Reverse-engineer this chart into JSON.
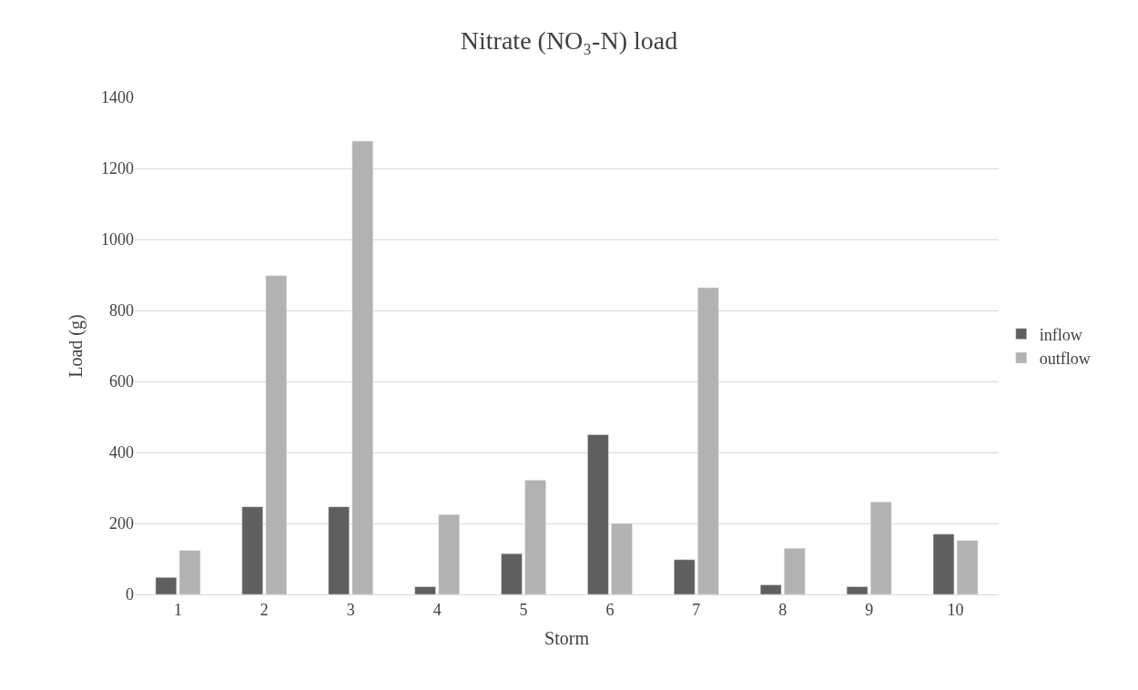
{
  "chart_data": {
    "type": "bar",
    "title": "Nitrate (NO₃-N) load",
    "xlabel": "Storm",
    "ylabel": "Load (g)",
    "categories": [
      "1",
      "2",
      "3",
      "4",
      "5",
      "6",
      "7",
      "8",
      "9",
      "10"
    ],
    "series": [
      {
        "name": "inflow",
        "color": "#5f5f5f",
        "values": [
          48,
          247,
          247,
          22,
          115,
          450,
          98,
          27,
          22,
          170
        ]
      },
      {
        "name": "outflow",
        "color": "#b2b2b2",
        "values": [
          124,
          898,
          1277,
          225,
          322,
          200,
          864,
          130,
          260,
          152
        ]
      }
    ],
    "ylim": [
      0,
      1400
    ],
    "yticks": [
      0,
      200,
      400,
      600,
      800,
      1000,
      1200,
      1400
    ],
    "grid": "y",
    "legend": "right"
  }
}
